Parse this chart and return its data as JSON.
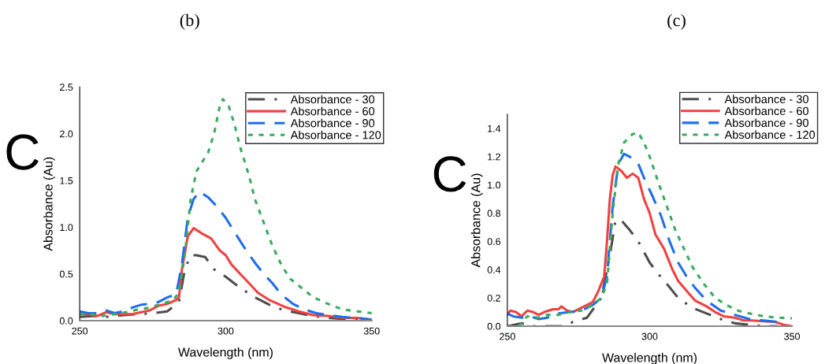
{
  "chart_data": [
    {
      "type": "line",
      "title": "(b)",
      "xlabel": "Wavelength (nm)",
      "ylabel": "Absorbance (Au)",
      "annotations": [
        "C"
      ],
      "xlim": [
        250,
        350
      ],
      "xticks": [
        250,
        300,
        350
      ],
      "ylim": [
        0,
        2.5
      ],
      "yticks": [
        {
          "value": 0,
          "label": "0.0"
        },
        0.5,
        {
          "value": 1,
          "label": "1.0"
        },
        1.5,
        {
          "value": 2,
          "label": "2.0"
        },
        2.5
      ],
      "grid": false,
      "legend": "top right",
      "marker": "none",
      "series": [
        {
          "name": "Absorbance - 30",
          "color": "#4d4d4d",
          "line_style": "dashdot",
          "x": [
            250,
            255,
            260,
            265,
            270,
            275,
            280,
            284,
            286,
            288,
            290,
            293,
            296,
            300,
            305,
            310,
            315,
            320,
            325,
            330,
            335,
            340,
            345,
            350
          ],
          "values": [
            0.04,
            0.05,
            0.04,
            0.06,
            0.07,
            0.08,
            0.1,
            0.2,
            0.55,
            0.7,
            0.7,
            0.68,
            0.55,
            0.47,
            0.35,
            0.25,
            0.17,
            0.11,
            0.08,
            0.05,
            0.03,
            0.02,
            0.01,
            0.01
          ]
        },
        {
          "name": "Absorbance - 60",
          "color": "#f04040",
          "line_style": "solid",
          "x": [
            250,
            253,
            256,
            259,
            262,
            265,
            268,
            271,
            274,
            277,
            280,
            283,
            284,
            285,
            287,
            289,
            292,
            295,
            298,
            300,
            302,
            305,
            308,
            311,
            315,
            320,
            325,
            330,
            335,
            340,
            345,
            350
          ],
          "values": [
            0.07,
            0.07,
            0.05,
            0.09,
            0.07,
            0.07,
            0.07,
            0.09,
            0.11,
            0.16,
            0.18,
            0.22,
            0.25,
            0.55,
            0.9,
            0.99,
            0.93,
            0.88,
            0.75,
            0.7,
            0.6,
            0.5,
            0.4,
            0.3,
            0.22,
            0.15,
            0.1,
            0.06,
            0.05,
            0.03,
            0.03,
            0.01
          ]
        },
        {
          "name": "Absorbance - 90",
          "color": "#1f6ee8",
          "line_style": "dashed",
          "x": [
            250,
            253,
            256,
            259,
            262,
            265,
            268,
            271,
            274,
            277,
            280,
            283,
            285,
            287,
            289,
            291,
            294,
            297,
            300,
            303,
            306,
            310,
            313,
            316,
            319,
            323,
            327,
            331,
            335,
            340,
            345,
            350
          ],
          "values": [
            0.1,
            0.08,
            0.08,
            0.11,
            0.08,
            0.1,
            0.14,
            0.17,
            0.18,
            0.2,
            0.25,
            0.28,
            0.6,
            1.1,
            1.3,
            1.38,
            1.32,
            1.22,
            1.1,
            0.95,
            0.8,
            0.62,
            0.5,
            0.4,
            0.28,
            0.18,
            0.12,
            0.08,
            0.06,
            0.04,
            0.03,
            0.01
          ]
        },
        {
          "name": "Absorbance - 120",
          "color": "#3aaa60",
          "line_style": "dotted",
          "x": [
            250,
            254,
            258,
            262,
            266,
            270,
            274,
            278,
            282,
            284,
            286,
            288,
            290,
            292,
            294,
            296,
            298,
            299,
            301,
            303,
            305,
            308,
            310,
            313,
            316,
            319,
            322,
            326,
            330,
            335,
            340,
            345,
            350
          ],
          "values": [
            0.07,
            0.07,
            0.05,
            0.07,
            0.09,
            0.12,
            0.14,
            0.18,
            0.22,
            0.3,
            0.7,
            1.3,
            1.6,
            1.7,
            1.8,
            2.0,
            2.3,
            2.37,
            2.3,
            2.1,
            1.85,
            1.55,
            1.3,
            1.05,
            0.8,
            0.6,
            0.45,
            0.35,
            0.25,
            0.18,
            0.12,
            0.1,
            0.08
          ]
        }
      ]
    },
    {
      "type": "line",
      "title": "(c)",
      "xlabel": "Wavelength (nm)",
      "ylabel": "Absorbance (Au)",
      "annotations": [
        "C"
      ],
      "xlim": [
        250,
        350
      ],
      "xticks": [
        250,
        300,
        350
      ],
      "ylim": [
        0,
        1.5
      ],
      "yticks": [
        {
          "value": 0,
          "label": "0.0"
        },
        0.2,
        0.4,
        0.6,
        0.8,
        {
          "value": 1,
          "label": "1.0"
        },
        1.2,
        1.4
      ],
      "grid": false,
      "legend": "top right",
      "marker": "none",
      "series": [
        {
          "name": "Absorbance - 30",
          "color": "#4d4d4d",
          "line_style": "dashdot",
          "x": [
            250,
            255,
            258,
            270,
            273,
            278,
            283,
            286,
            288,
            290,
            293,
            296,
            300,
            303,
            306,
            310,
            315,
            320,
            325,
            330,
            335,
            340,
            345
          ],
          "values": [
            0.0,
            0.02,
            0.0,
            0.0,
            0.03,
            0.06,
            0.2,
            0.5,
            0.75,
            0.75,
            0.68,
            0.6,
            0.45,
            0.37,
            0.3,
            0.2,
            0.13,
            0.09,
            0.05,
            0.02,
            0.01,
            0.0,
            0.0
          ]
        },
        {
          "name": "Absorbance - 60",
          "color": "#f04040",
          "line_style": "solid",
          "x": [
            250,
            251,
            253,
            255,
            257,
            259,
            261,
            263,
            266,
            268,
            269,
            271,
            273,
            275,
            277,
            280,
            282,
            284,
            285,
            286,
            287,
            288,
            290,
            292,
            294,
            296,
            298,
            300,
            302,
            305,
            308,
            310,
            313,
            316,
            320,
            323,
            326,
            330,
            333,
            336,
            340,
            344,
            347,
            350
          ],
          "values": [
            0.08,
            0.11,
            0.1,
            0.07,
            0.11,
            0.1,
            0.08,
            0.1,
            0.12,
            0.12,
            0.14,
            0.11,
            0.1,
            0.12,
            0.14,
            0.17,
            0.25,
            0.35,
            0.6,
            0.9,
            1.07,
            1.13,
            1.1,
            1.05,
            1.08,
            1.05,
            0.9,
            0.8,
            0.65,
            0.55,
            0.4,
            0.32,
            0.25,
            0.18,
            0.14,
            0.1,
            0.07,
            0.06,
            0.04,
            0.04,
            0.035,
            0.03,
            0.01,
            0.0
          ]
        },
        {
          "name": "Absorbance - 90",
          "color": "#1f6ee8",
          "line_style": "dashed",
          "x": [
            250,
            252,
            255,
            258,
            261,
            264,
            268,
            272,
            276,
            280,
            283,
            285,
            287,
            289,
            291,
            293,
            296,
            298,
            301,
            304,
            307,
            310,
            313,
            316,
            320,
            325,
            330,
            335,
            340,
            345
          ],
          "values": [
            0.09,
            0.07,
            0.06,
            0.07,
            0.05,
            0.06,
            0.09,
            0.1,
            0.11,
            0.15,
            0.2,
            0.35,
            0.85,
            1.15,
            1.22,
            1.2,
            1.15,
            1.05,
            0.92,
            0.78,
            0.6,
            0.45,
            0.35,
            0.27,
            0.18,
            0.11,
            0.08,
            0.05,
            0.04,
            0.03
          ]
        },
        {
          "name": "Absorbance - 120",
          "color": "#3aaa60",
          "line_style": "dotted",
          "x": [
            250,
            254,
            257,
            261,
            264,
            268,
            272,
            276,
            280,
            283,
            285,
            287,
            289,
            291,
            294,
            296,
            298,
            300,
            303,
            306,
            309,
            312,
            315,
            319,
            323,
            327,
            331,
            335,
            340,
            345,
            350
          ],
          "values": [
            0.0,
            0.0,
            0.07,
            0.06,
            0.08,
            0.08,
            0.1,
            0.11,
            0.15,
            0.2,
            0.3,
            0.8,
            1.15,
            1.3,
            1.36,
            1.37,
            1.3,
            1.2,
            1.02,
            0.85,
            0.68,
            0.55,
            0.42,
            0.3,
            0.2,
            0.15,
            0.11,
            0.09,
            0.07,
            0.06,
            0.055
          ]
        }
      ]
    }
  ]
}
